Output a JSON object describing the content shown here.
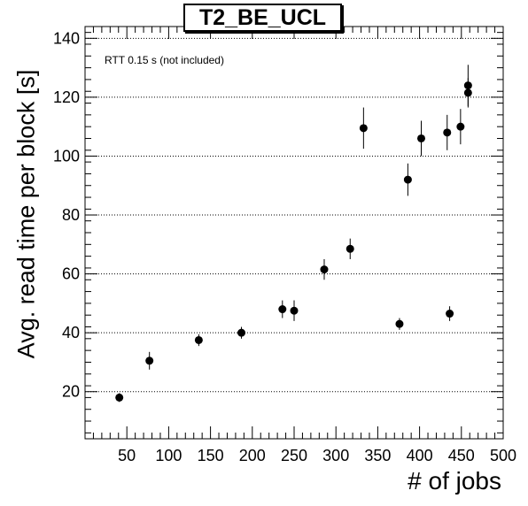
{
  "chart_data": {
    "type": "scatter",
    "title": "T2_BE_UCL",
    "annotation": "RTT 0.15 s (not included)",
    "xlabel": "# of jobs",
    "ylabel": "Avg. read time per block [s]",
    "xlim": [
      0,
      500
    ],
    "ylim": [
      4,
      144
    ],
    "xticks": [
      50,
      100,
      150,
      200,
      250,
      300,
      350,
      400,
      450,
      500
    ],
    "yticks": [
      20,
      40,
      60,
      80,
      100,
      120,
      140
    ],
    "grid": "horizontal dotted",
    "series": [
      {
        "points": [
          {
            "x": 41,
            "y": 18,
            "err": 1.5
          },
          {
            "x": 77,
            "y": 30.5,
            "err": 3
          },
          {
            "x": 136,
            "y": 37.5,
            "err": 2
          },
          {
            "x": 187,
            "y": 40,
            "err": 2
          },
          {
            "x": 236,
            "y": 48,
            "err": 3
          },
          {
            "x": 250,
            "y": 47.5,
            "err": 3.5
          },
          {
            "x": 286,
            "y": 61.5,
            "err": 3.5
          },
          {
            "x": 317,
            "y": 68.5,
            "err": 3.5
          },
          {
            "x": 333,
            "y": 109.5,
            "err": 7
          },
          {
            "x": 376,
            "y": 43,
            "err": 2
          },
          {
            "x": 386,
            "y": 92,
            "err": 5.5
          },
          {
            "x": 402,
            "y": 106,
            "err": 6
          },
          {
            "x": 433,
            "y": 108,
            "err": 6
          },
          {
            "x": 436,
            "y": 46.5,
            "err": 2.5
          },
          {
            "x": 449,
            "y": 110,
            "err": 6
          },
          {
            "x": 458,
            "y": 124,
            "err": 7
          },
          {
            "x": 458,
            "y": 121.5,
            "err": 5
          }
        ]
      }
    ]
  }
}
